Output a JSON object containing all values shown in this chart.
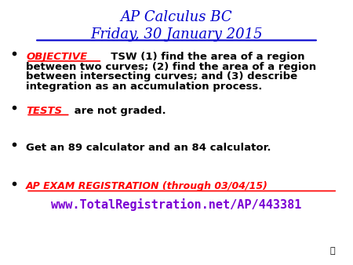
{
  "background_color": "#ffffff",
  "title_line1": "AP Calculus BC",
  "title_line2": "Friday, 30 January 2015",
  "title_color": "#0000cd",
  "bullet1_keyword": "OBJECTIVE",
  "bullet1_keyword_color": "#ff0000",
  "bullet1_rest": "  TSW (1) find the area of a region",
  "bullet1_line2": "between two curves; (2) find the area of a region",
  "bullet1_line3": "between intersecting curves; and (3) describe",
  "bullet1_line4": "integration as an accumulation process.",
  "bullet2_keyword": "TESTS",
  "bullet2_keyword_color": "#ff0000",
  "bullet2_rest": " are not graded.",
  "bullet3_text": "Get an 89 calculator and an 84 calculator.",
  "bullet3_color": "#000000",
  "bullet4_keyword": "AP EXAM REGISTRATION (through 03/04/15)",
  "bullet4_keyword_color": "#ff0000",
  "bullet5_text": "www.TotalRegistration.net/AP/443381",
  "bullet5_color": "#7B00D4",
  "bullet_color": "#000000",
  "figsize": [
    4.5,
    3.38
  ],
  "dpi": 100
}
